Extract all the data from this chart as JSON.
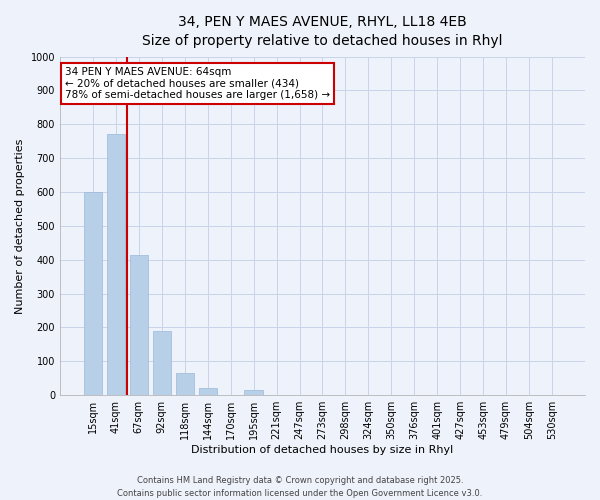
{
  "title_line1": "34, PEN Y MAES AVENUE, RHYL, LL18 4EB",
  "title_line2": "Size of property relative to detached houses in Rhyl",
  "xlabel": "Distribution of detached houses by size in Rhyl",
  "ylabel": "Number of detached properties",
  "categories": [
    "15sqm",
    "41sqm",
    "67sqm",
    "92sqm",
    "118sqm",
    "144sqm",
    "170sqm",
    "195sqm",
    "221sqm",
    "247sqm",
    "273sqm",
    "298sqm",
    "324sqm",
    "350sqm",
    "376sqm",
    "401sqm",
    "427sqm",
    "453sqm",
    "479sqm",
    "504sqm",
    "530sqm"
  ],
  "values": [
    600,
    770,
    415,
    190,
    65,
    20,
    0,
    15,
    0,
    0,
    0,
    0,
    0,
    0,
    0,
    0,
    0,
    0,
    0,
    0,
    0
  ],
  "bar_color": "#b8cfe8",
  "bar_edge_color": "#9ab8d8",
  "vline_x_data": 1.5,
  "vline_color": "#cc0000",
  "ylim": [
    0,
    1000
  ],
  "yticks": [
    0,
    100,
    200,
    300,
    400,
    500,
    600,
    700,
    800,
    900,
    1000
  ],
  "background_color": "#eef2fa",
  "grid_color": "#c8d4e8",
  "annotation_text": "34 PEN Y MAES AVENUE: 64sqm\n← 20% of detached houses are smaller (434)\n78% of semi-detached houses are larger (1,658) →",
  "annotation_box_color": "#ffffff",
  "annotation_border_color": "#cc0000",
  "footer_line1": "Contains HM Land Registry data © Crown copyright and database right 2025.",
  "footer_line2": "Contains public sector information licensed under the Open Government Licence v3.0.",
  "title_fontsize": 10,
  "subtitle_fontsize": 9,
  "axis_label_fontsize": 8,
  "tick_fontsize": 7,
  "annotation_fontsize": 7.5,
  "footer_fontsize": 6
}
